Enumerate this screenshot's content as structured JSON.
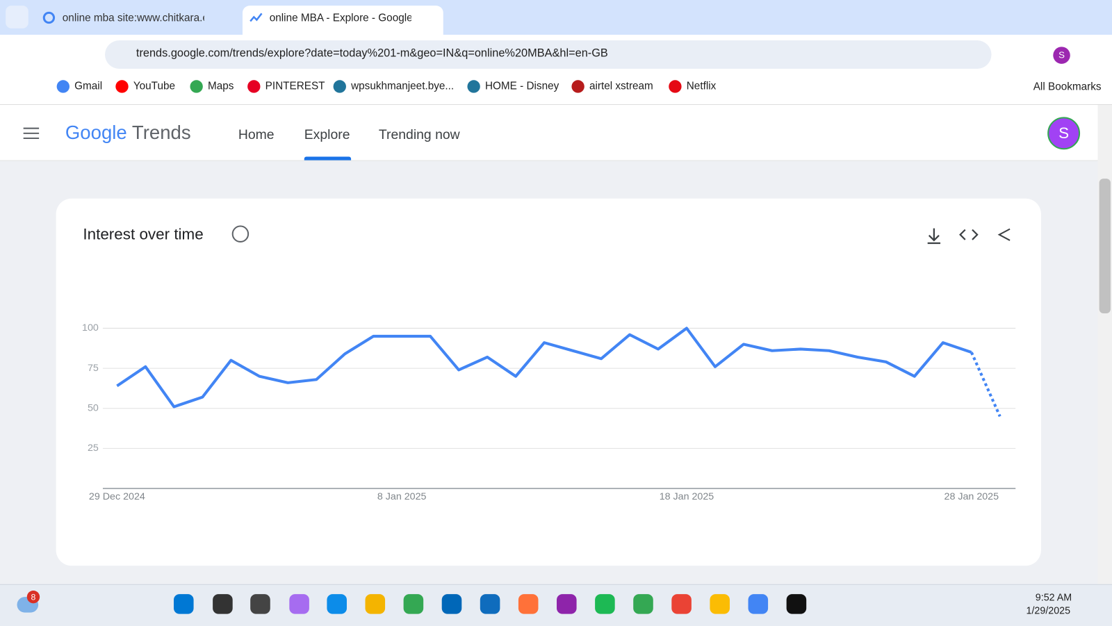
{
  "browser": {
    "tabs": [
      "online mba site:www.chitkara.ec",
      "online MBA - Explore - Google"
    ],
    "url": "trends.google.com/trends/explore?date=today%201-m&geo=IN&q=online%20MBA&hl=en-GB",
    "bookmarks": [
      "Gmail",
      "YouTube",
      "Maps",
      "PINTEREST",
      "wpsukhmanjeet.bye...",
      "HOME - Disney",
      "airtel xstream",
      "Netflix"
    ],
    "all_bookmarks": "All Bookmarks",
    "profile": "S"
  },
  "header": {
    "logo_google": "Google",
    "logo_trends": "Trends",
    "nav": [
      "Home",
      "Explore",
      "Trending now"
    ],
    "avatar": "S"
  },
  "chart_data": {
    "type": "line",
    "title": "Interest over time",
    "color": "#4285f4",
    "dashed_last_segment": true,
    "grid": true,
    "x": [
      "2024-12-29",
      "2024-12-30",
      "2024-12-31",
      "2025-01-01",
      "2025-01-02",
      "2025-01-03",
      "2025-01-04",
      "2025-01-05",
      "2025-01-06",
      "2025-01-07",
      "2025-01-08",
      "2025-01-09",
      "2025-01-10",
      "2025-01-11",
      "2025-01-12",
      "2025-01-13",
      "2025-01-14",
      "2025-01-15",
      "2025-01-16",
      "2025-01-17",
      "2025-01-18",
      "2025-01-19",
      "2025-01-20",
      "2025-01-21",
      "2025-01-22",
      "2025-01-23",
      "2025-01-24",
      "2025-01-25",
      "2025-01-26",
      "2025-01-27",
      "2025-01-28",
      "2025-01-29"
    ],
    "values": [
      64,
      76,
      51,
      57,
      80,
      70,
      66,
      68,
      84,
      95,
      95,
      95,
      74,
      82,
      70,
      91,
      86,
      81,
      96,
      87,
      100,
      76,
      90,
      86,
      87,
      86,
      82,
      79,
      70,
      91,
      85,
      45
    ],
    "xlim": [
      "2024-12-29",
      "2025-01-29"
    ],
    "xticks": [
      {
        "value": "2024-12-29",
        "label": "29 Dec 2024"
      },
      {
        "value": "2025-01-08",
        "label": "8 Jan 2025"
      },
      {
        "value": "2025-01-18",
        "label": "18 Jan 2025"
      },
      {
        "value": "2025-01-28",
        "label": "28 Jan 2025"
      }
    ],
    "ylim": [
      0,
      100
    ],
    "yticks": [
      25,
      50,
      75,
      100
    ]
  },
  "taskbar": {
    "weather_badge": "8",
    "time": "9:52 AM",
    "date": "1/29/2025"
  }
}
